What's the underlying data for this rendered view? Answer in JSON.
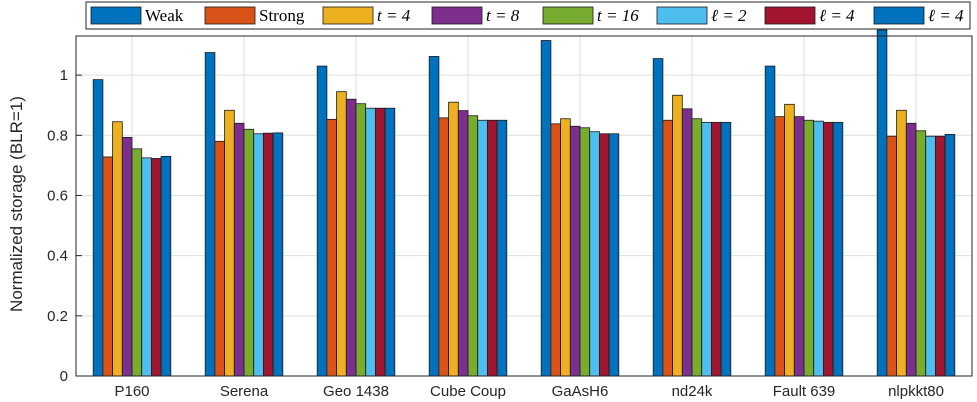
{
  "chart_data": {
    "type": "bar",
    "categories": [
      "P160",
      "Serena",
      "Geo_1438",
      "Cube_Coup",
      "GaAsH6",
      "nd24k",
      "Fault_639",
      "nlpkkt80"
    ],
    "category_display": [
      "P160",
      "Serena",
      "Geo 1438",
      "Cube Coup",
      "GaAsH6",
      "nd24k",
      "Fault 639",
      "nlpkkt80"
    ],
    "ylabel": "Normalized storage (BLR=1)",
    "xlabel": "",
    "ylim": [
      0,
      1.13
    ],
    "yticks": [
      0,
      0.2,
      0.4,
      0.6,
      0.8,
      1
    ],
    "ytick_labels": [
      "0",
      "0.2",
      "0.4",
      "0.6",
      "0.8",
      "1"
    ],
    "grid": true,
    "legend_position": "top",
    "series": [
      {
        "name": "Weak",
        "color": "#0072BD",
        "values": [
          0.985,
          1.075,
          1.03,
          1.062,
          1.115,
          1.055,
          1.03,
          1.15
        ]
      },
      {
        "name": "Strong",
        "color": "#D95319",
        "values": [
          0.728,
          0.78,
          0.853,
          0.858,
          0.838,
          0.85,
          0.862,
          0.797
        ]
      },
      {
        "name": "t = 4",
        "color": "#EDB120",
        "values": [
          0.845,
          0.883,
          0.945,
          0.91,
          0.855,
          0.933,
          0.903,
          0.883
        ]
      },
      {
        "name": "t = 8",
        "color": "#7E2F8E",
        "values": [
          0.793,
          0.84,
          0.92,
          0.882,
          0.83,
          0.888,
          0.862,
          0.84
        ]
      },
      {
        "name": "t = 16",
        "color": "#77AC30",
        "values": [
          0.755,
          0.82,
          0.905,
          0.865,
          0.825,
          0.855,
          0.85,
          0.815
        ]
      },
      {
        "name": "ℓ = 2",
        "color": "#4DBEEE",
        "values": [
          0.725,
          0.805,
          0.89,
          0.85,
          0.812,
          0.843,
          0.847,
          0.797
        ]
      },
      {
        "name": "ℓ = 4",
        "color": "#A2142F",
        "values": [
          0.723,
          0.807,
          0.89,
          0.85,
          0.805,
          0.843,
          0.843,
          0.797
        ]
      },
      {
        "name": "ℓ = 4",
        "color": "#0072BD",
        "values": [
          0.73,
          0.808,
          0.89,
          0.85,
          0.805,
          0.843,
          0.843,
          0.803
        ]
      }
    ]
  }
}
